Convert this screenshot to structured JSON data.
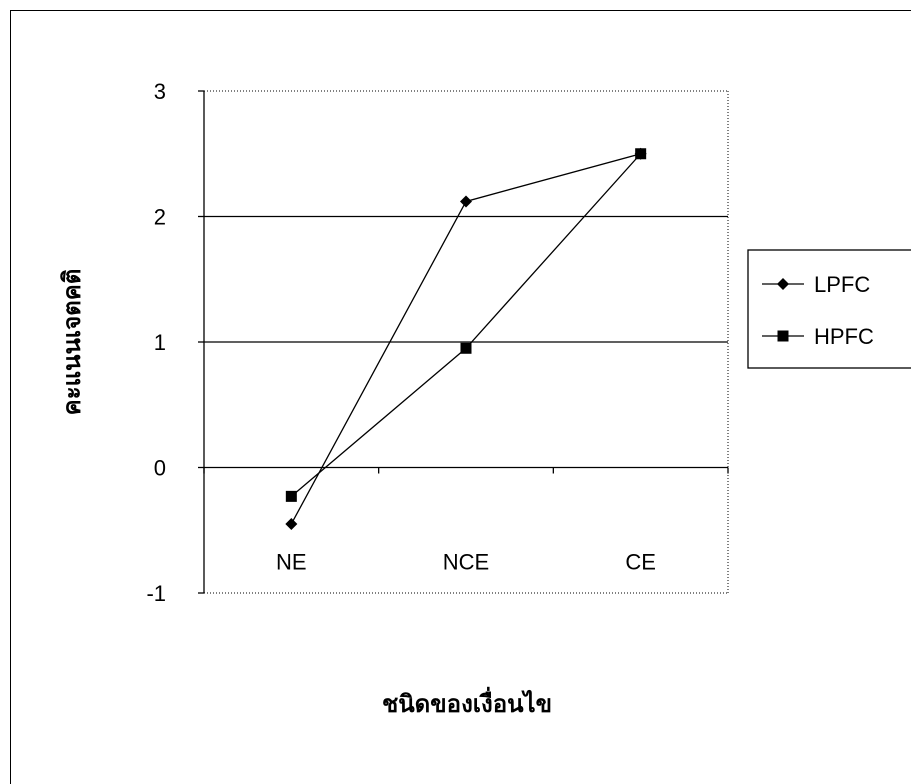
{
  "chart_data": {
    "type": "line",
    "title": "",
    "xlabel": "ชนิดของเงื่อนไข",
    "ylabel": "คะแนนเจตคติ",
    "categories": [
      "NE",
      "NCE",
      "CE"
    ],
    "ylim": [
      -1,
      3
    ],
    "yticks": [
      -1,
      0,
      1,
      2,
      3
    ],
    "grid": "horizontal major gridlines",
    "legend_position": "right",
    "series": [
      {
        "name": "LPFC",
        "marker": "diamond",
        "color": "#000000",
        "values": [
          -0.45,
          2.12,
          2.5
        ]
      },
      {
        "name": "HPFC",
        "marker": "square",
        "color": "#000000",
        "values": [
          -0.23,
          0.95,
          2.5
        ]
      }
    ]
  }
}
